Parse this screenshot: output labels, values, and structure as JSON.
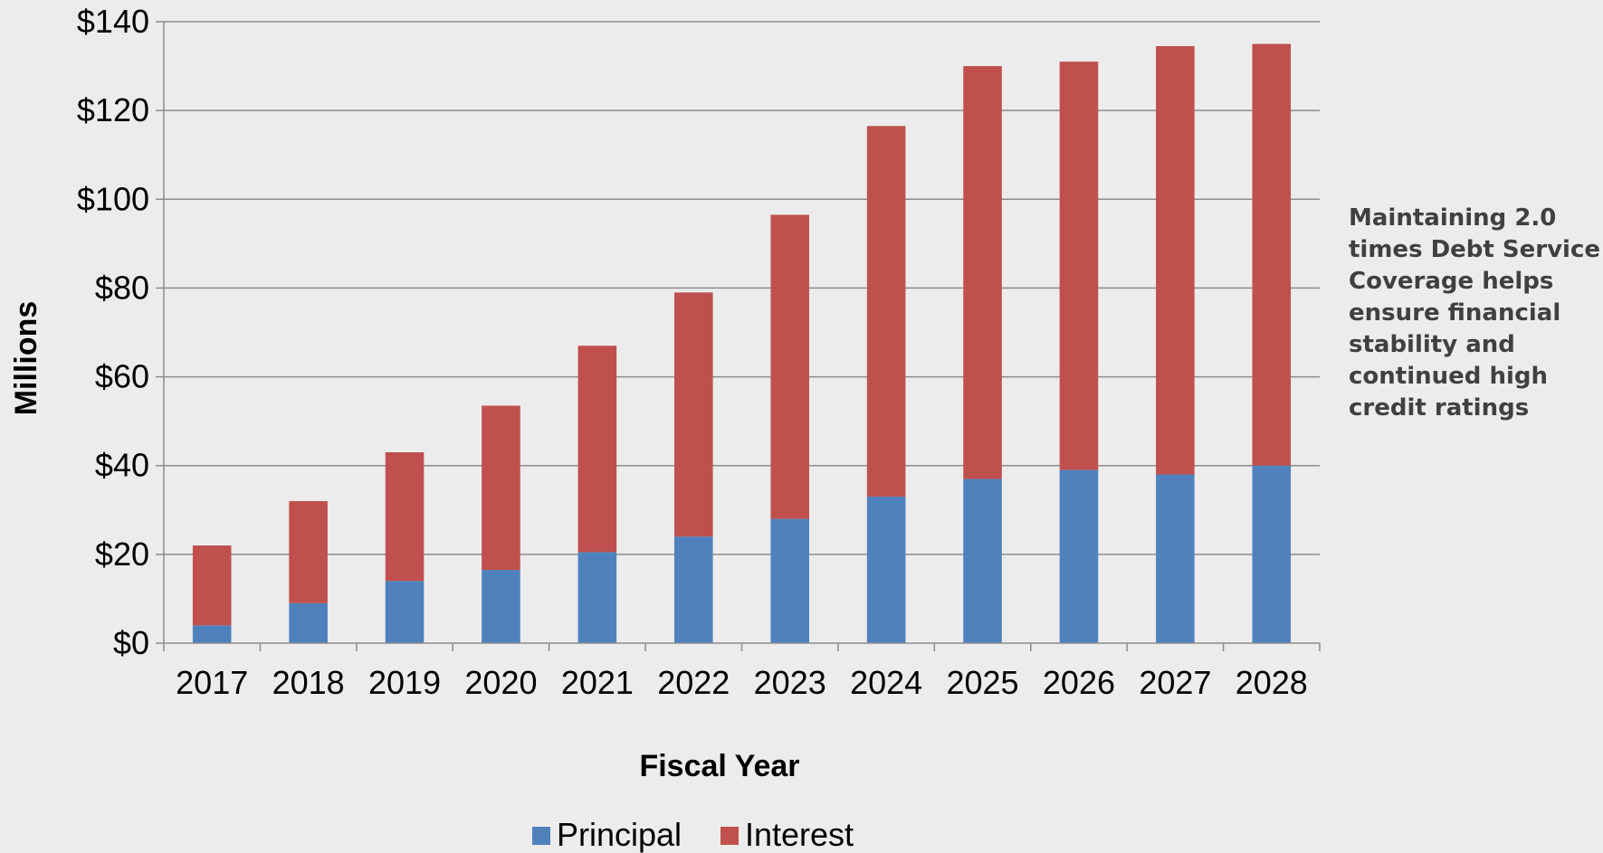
{
  "chart_data": {
    "type": "bar",
    "stacked": true,
    "categories": [
      "2017",
      "2018",
      "2019",
      "2020",
      "2021",
      "2022",
      "2023",
      "2024",
      "2025",
      "2026",
      "2027",
      "2028"
    ],
    "series": [
      {
        "name": "Principal",
        "color": "#4f81bd",
        "values": [
          4,
          9,
          14,
          16.5,
          20.5,
          24,
          28,
          33,
          37,
          39,
          38,
          40
        ]
      },
      {
        "name": "Interest",
        "color": "#c0504d",
        "values": [
          18,
          23,
          29,
          37,
          46.5,
          55,
          68.5,
          83.5,
          93,
          92,
          96.5,
          95
        ]
      }
    ],
    "title": "",
    "xlabel": "Fiscal Year",
    "ylabel": "Millions",
    "ylim": [
      0,
      140
    ],
    "yticks": [
      0,
      20,
      40,
      60,
      80,
      100,
      120,
      140
    ],
    "ytick_labels": [
      "$0",
      "$20",
      "$40",
      "$60",
      "$80",
      "$100",
      "$120",
      "$140"
    ],
    "grid": true,
    "legend_position": "bottom-center"
  },
  "annotation": "Maintaining 2.0 times Debt Service Coverage helps ensure financial stability and continued high credit ratings"
}
